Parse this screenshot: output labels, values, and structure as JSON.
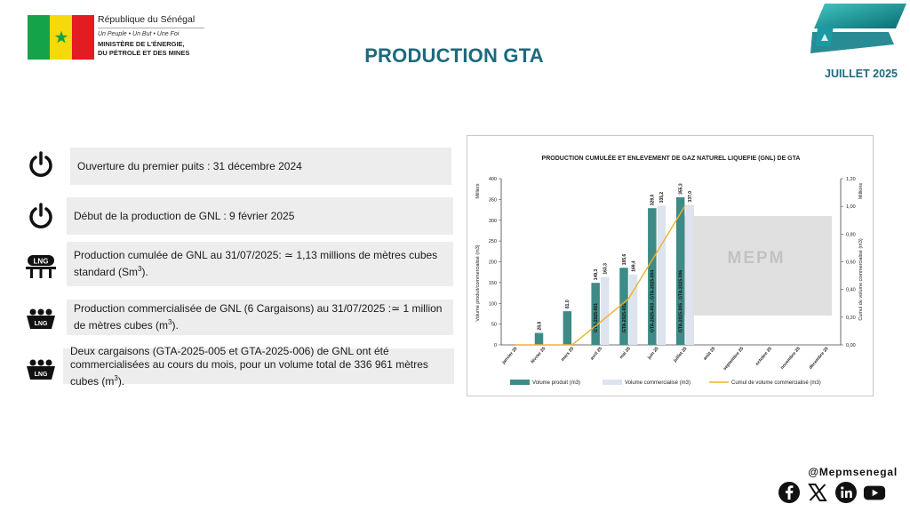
{
  "header": {
    "republic": "République du Sénégal",
    "motto": "Un Peuple  •  Un But  •  Une Foi",
    "ministry_line1": "MINISTÈRE DE L'ÉNERGIE,",
    "ministry_line2": "DU PÉTROLE ET DES MINES",
    "title": "PRODUCTION GTA",
    "date": "JUILLET 2025"
  },
  "info": {
    "item1": "Ouverture du premier puits : 31 décembre 2024",
    "item2": "Début de la production de GNL : 9 février 2025",
    "item3_a": "Production cumulée de GNL au 31/07/2025: ≃ 1,13 millions de mètres cubes standard (Sm",
    "item3_sup": "3",
    "item3_b": ").",
    "item4_a": "Production commercialisée de GNL (6 Cargaisons) au 31/07/2025 :≃ 1 million de mètres cubes (m",
    "item4_sup": "3",
    "item4_b": ").",
    "item5_a": "Deux cargaisons (GTA-2025-005 et GTA-2025-006) de GNL ont été commercialisées au cours du mois, pour un volume total de 336 961 mètres cubes (m",
    "item5_sup": "3",
    "item5_b": ").",
    "lng_label": "LNG"
  },
  "chart_data": {
    "type": "bar",
    "title": "PRODUCTION CUMULÉE ET ENLEVEMENT DE GAZ NATUREL LIQUEFIE (GNL) DE GTA",
    "categories": [
      "janvier 25",
      "février 25",
      "mars 25",
      "avril 25",
      "mai 25",
      "juin 25",
      "juillet 25",
      "août 25",
      "septembre 25",
      "octobre 25",
      "novembre 25",
      "décembre 25"
    ],
    "series": [
      {
        "name": "Volume produit (m3)",
        "color": "#3d8b87",
        "values": [
          null,
          28.8,
          81.0,
          149.3,
          185.6,
          329.0,
          355.3,
          null,
          null,
          null,
          null,
          null
        ],
        "labels": [
          "",
          "28,8",
          "81,0",
          "149,3",
          "185,6",
          "329,0",
          "355,3",
          "",
          "",
          "",
          "",
          ""
        ]
      },
      {
        "name": "Volume commercialisé (m3)",
        "color": "#dde3ef",
        "values": [
          null,
          null,
          null,
          163.3,
          169.4,
          335.2,
          337.0,
          null,
          null,
          null,
          null,
          null
        ],
        "labels": [
          "",
          "",
          "",
          "163,3",
          "169,4",
          "335,2",
          "337,0",
          "",
          "",
          "",
          "",
          ""
        ]
      },
      {
        "name": "Cumul de volume commercialisé (m3)",
        "color": "#f0b030",
        "type": "line",
        "axis": "right",
        "values": [
          0,
          0,
          0,
          0.163,
          0.333,
          0.668,
          1.005,
          null,
          null,
          null,
          null,
          null
        ]
      }
    ],
    "cargo_labels": [
      {
        "category": "avril 25",
        "text": "GTA-2025-001"
      },
      {
        "category": "mai 25",
        "text": "GTA-2025-002"
      },
      {
        "category": "juin 25",
        "text": "GTA-2025-003 , GTA-2025-004"
      },
      {
        "category": "juillet 25",
        "text": "GTA-2025-005 , GTA-2025-006"
      }
    ],
    "ylabel": "Volume produit/commercialisé (m3)",
    "yunit": "Milliers",
    "ylim": [
      0,
      400
    ],
    "yticks": [
      "0",
      "50",
      "100",
      "150",
      "200",
      "250",
      "300",
      "350",
      "400"
    ],
    "y2label": "Cumul de volume commercialisé (m3)",
    "y2unit": "Millions",
    "y2lim": [
      0,
      1.2
    ],
    "y2ticks": [
      "0,00",
      "0,20",
      "0,40",
      "0,60",
      "0,80",
      "1,00",
      "1,20"
    ],
    "legend_position": "bottom",
    "watermark": "MEPM"
  },
  "footer": {
    "handle": "@Mepmsenegal",
    "socials": [
      "facebook-icon",
      "x-icon",
      "linkedin-icon",
      "youtube-icon"
    ]
  }
}
